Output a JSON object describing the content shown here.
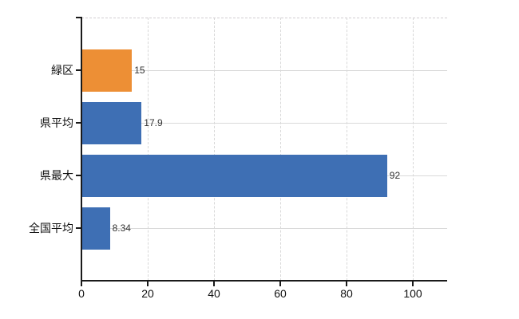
{
  "chart_data": {
    "type": "bar",
    "orientation": "horizontal",
    "title": "",
    "xlabel": "",
    "ylabel": "",
    "categories": [
      "緑区",
      "県平均",
      "県最大",
      "全国平均"
    ],
    "values": [
      15,
      17.9,
      92,
      8.34
    ],
    "value_labels": [
      "15",
      "17.9",
      "92",
      "8.34"
    ],
    "bar_colors": [
      "#ED8F35",
      "#3E6FB4",
      "#3E6FB4",
      "#3E6FB4"
    ],
    "x_ticks": [
      0,
      20,
      40,
      60,
      80,
      100
    ],
    "x_tick_labels": [
      "0",
      "20",
      "40",
      "60",
      "80",
      "100"
    ],
    "xlim": [
      0,
      110.4
    ],
    "legend": "none",
    "grid": {
      "vertical": "dashed",
      "horizontal": "solid",
      "top_border": "dashed"
    }
  },
  "colors": {
    "background": "#FFFFFF",
    "bar_orange": "#ED8F35",
    "bar_blue": "#3E6FB4",
    "gridline": "#D8D8D8",
    "axis": "#1A1A1A",
    "value_label": "#333333",
    "tick_label": "#111111"
  }
}
